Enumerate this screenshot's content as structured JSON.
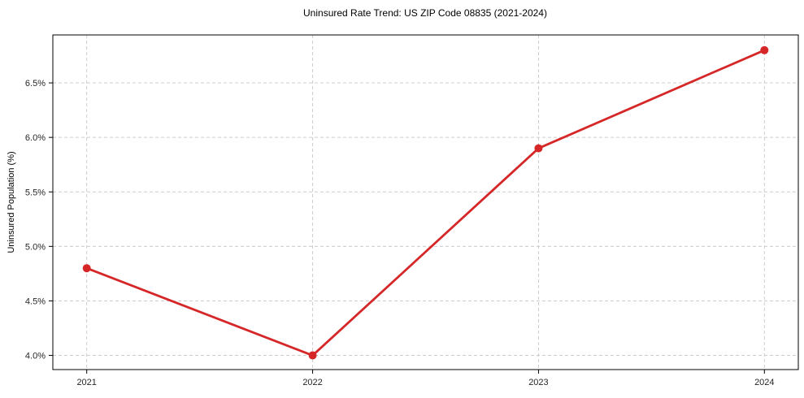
{
  "chart_data": {
    "type": "line",
    "title": "Uninsured Rate Trend: US ZIP Code 08835 (2021-2024)",
    "xlabel": "",
    "ylabel": "Uninsured Population (%)",
    "x": [
      2021,
      2022,
      2023,
      2024
    ],
    "values": [
      4.8,
      4.0,
      5.9,
      6.8
    ],
    "x_tick_labels": [
      "2021",
      "2022",
      "2023",
      "2024"
    ],
    "y_ticks": [
      4.0,
      4.5,
      5.0,
      5.5,
      6.0,
      6.5
    ],
    "y_tick_labels": [
      "4.0%",
      "4.5%",
      "5.0%",
      "5.5%",
      "6.0%",
      "6.5%"
    ],
    "xlim": [
      2020.85,
      2024.15
    ],
    "ylim": [
      3.87,
      6.94
    ],
    "grid": true,
    "grid_style": "dashed",
    "legend": false,
    "line_color": "#d62728",
    "grid_color": "#cccccc",
    "axis_color": "#000000",
    "text_color": "#262626"
  }
}
